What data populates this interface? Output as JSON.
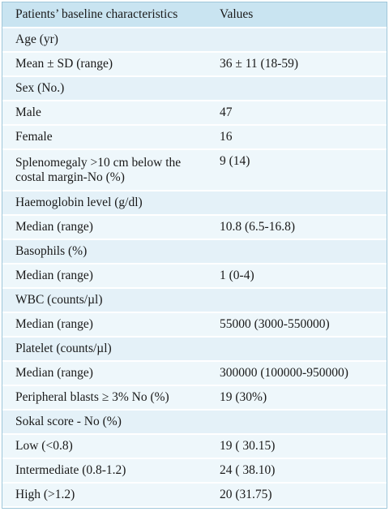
{
  "table": {
    "header": [
      "Patients’ baseline characteristics",
      "Values"
    ],
    "rows": [
      [
        "Age (yr)"
      ],
      [
        "Mean ± SD (range)",
        "36 ± 11 (18-59)"
      ],
      [
        "Sex (No.)"
      ],
      [
        "Male",
        "47"
      ],
      [
        "Female",
        "16"
      ],
      [
        "Splenomegaly >10 cm below the costal margin-No (%)",
        "9 (14)"
      ],
      [
        "Haemoglobin level (g/dl)"
      ],
      [
        "Median (range)",
        "10.8 (6.5-16.8)"
      ],
      [
        "Basophils (%)"
      ],
      [
        "Median (range)",
        "1 (0-4)"
      ],
      [
        "WBC (counts/µl)"
      ],
      [
        "Median (range)",
        "55000 (3000-550000)"
      ],
      [
        "Platelet (counts/µl)"
      ],
      [
        "Median (range)",
        "300000 (100000-950000)"
      ],
      [
        "Peripheral blasts ≥ 3% No (%)",
        "19 (30%)"
      ],
      [
        "Sokal score - No (%)"
      ],
      [
        "Low (<0.8)",
        "19 ( 30.15)"
      ],
      [
        "Intermediate (0.8-1.2)",
        "24 ( 38.10)"
      ],
      [
        "High (>1.2)",
        "20 (31.75)"
      ]
    ]
  }
}
